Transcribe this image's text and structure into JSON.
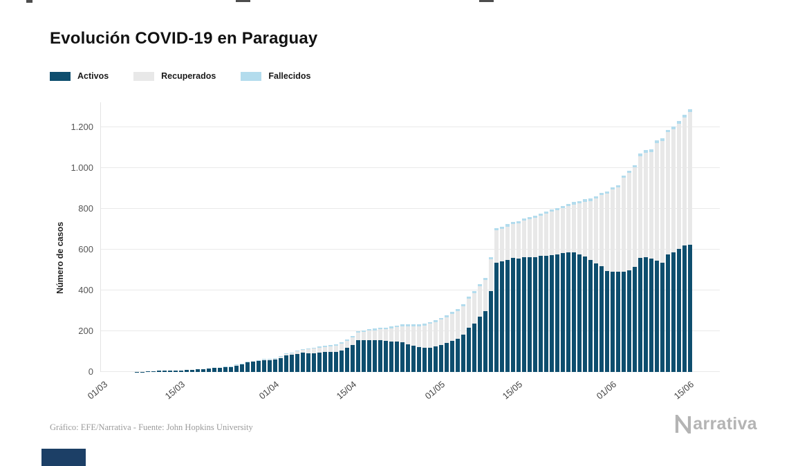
{
  "header": {
    "title": "Evolución COVID-19 en Paraguay"
  },
  "legend": {
    "items": [
      {
        "label": "Activos",
        "color": "#0e4e6e"
      },
      {
        "label": "Recuperados",
        "color": "#e8e8e8"
      },
      {
        "label": "Fallecidos",
        "color": "#b3dced"
      }
    ]
  },
  "footer": {
    "credit": "Gráfico: EFE/Narrativa - Fuente: John Hopkins University",
    "brand_name": "Narrativa",
    "brand_text": "arrativa"
  },
  "colors": {
    "background": "#ffffff",
    "gridline": "#e9e9e9",
    "banner": "#1c3f66",
    "brand_gray": "#b4b4b4"
  },
  "chart_data": {
    "type": "bar",
    "stacked": true,
    "title": "Evolución COVID-19 en Paraguay",
    "xlabel": "",
    "ylabel": "Número de casos",
    "ylim": [
      0,
      1300
    ],
    "grid": "horizontal",
    "legend_position": "top-left",
    "yticks": [
      0,
      200,
      400,
      600,
      800,
      1000,
      1200
    ],
    "ytick_labels": [
      "0",
      "200",
      "400",
      "600",
      "800",
      "1.000",
      "1.200"
    ],
    "xtick_labels": [
      "01/03",
      "15/03",
      "01/04",
      "15/04",
      "01/05",
      "15/05",
      "01/06",
      "15/06"
    ],
    "xtick_day_index": [
      0,
      14,
      31,
      45,
      61,
      75,
      92,
      106
    ],
    "dates": [
      "01/03",
      "02/03",
      "03/03",
      "04/03",
      "05/03",
      "06/03",
      "07/03",
      "08/03",
      "09/03",
      "10/03",
      "11/03",
      "12/03",
      "13/03",
      "14/03",
      "15/03",
      "16/03",
      "17/03",
      "18/03",
      "19/03",
      "20/03",
      "21/03",
      "22/03",
      "23/03",
      "24/03",
      "25/03",
      "26/03",
      "27/03",
      "28/03",
      "29/03",
      "30/03",
      "31/03",
      "01/04",
      "02/04",
      "03/04",
      "04/04",
      "05/04",
      "06/04",
      "07/04",
      "08/04",
      "09/04",
      "10/04",
      "11/04",
      "12/04",
      "13/04",
      "14/04",
      "15/04",
      "16/04",
      "17/04",
      "18/04",
      "19/04",
      "20/04",
      "21/04",
      "22/04",
      "23/04",
      "24/04",
      "25/04",
      "26/04",
      "27/04",
      "28/04",
      "29/04",
      "30/04",
      "01/05",
      "02/05",
      "03/05",
      "04/05",
      "05/05",
      "06/05",
      "07/05",
      "08/05",
      "09/05",
      "10/05",
      "11/05",
      "12/05",
      "13/05",
      "14/05",
      "15/05",
      "16/05",
      "17/05",
      "18/05",
      "19/05",
      "20/05",
      "21/05",
      "22/05",
      "23/05",
      "24/05",
      "25/05",
      "26/05",
      "27/05",
      "28/05",
      "29/05",
      "30/05",
      "31/05",
      "01/06",
      "02/06",
      "03/06",
      "04/06",
      "05/06",
      "06/06",
      "07/06",
      "08/06",
      "09/06",
      "10/06",
      "11/06",
      "12/06",
      "13/06",
      "14/06",
      "15/06"
    ],
    "series": [
      {
        "name": "Activos",
        "color": "#0e4e6e",
        "values": [
          0,
          0,
          0,
          0,
          0,
          0,
          1,
          1,
          3,
          5,
          6,
          6,
          7,
          7,
          8,
          9,
          11,
          13,
          15,
          17,
          21,
          20,
          24,
          24,
          32,
          36,
          47,
          50,
          53,
          58,
          59,
          62,
          69,
          82,
          84,
          89,
          95,
          93,
          93,
          96,
          97,
          98,
          97,
          106,
          120,
          133,
          155,
          156,
          157,
          156,
          157,
          152,
          150,
          148,
          145,
          137,
          129,
          121,
          118,
          120,
          124,
          133,
          141,
          154,
          164,
          183,
          216,
          238,
          271,
          299,
          396,
          536,
          541,
          549,
          558,
          557,
          564,
          564,
          564,
          569,
          570,
          574,
          576,
          582,
          586,
          585,
          577,
          567,
          549,
          533,
          519,
          494,
          491,
          491,
          491,
          497,
          514,
          560,
          563,
          556,
          545,
          535,
          575,
          588,
          605,
          620,
          625
        ]
      },
      {
        "name": "Recuperados",
        "color": "#e8e8e8",
        "values": [
          0,
          0,
          0,
          0,
          0,
          0,
          0,
          0,
          0,
          0,
          0,
          0,
          0,
          0,
          0,
          0,
          0,
          0,
          0,
          0,
          0,
          1,
          1,
          1,
          2,
          2,
          2,
          3,
          3,
          3,
          3,
          4,
          5,
          7,
          9,
          12,
          15,
          18,
          21,
          23,
          26,
          29,
          31,
          34,
          34,
          36,
          38,
          41,
          45,
          49,
          53,
          58,
          64,
          71,
          79,
          87,
          95,
          103,
          110,
          116,
          121,
          124,
          128,
          132,
          136,
          140,
          144,
          148,
          150,
          153,
          156,
          158,
          161,
          164,
          168,
          172,
          178,
          184,
          191,
          198,
          205,
          211,
          217,
          222,
          227,
          237,
          250,
          268,
          290,
          318,
          348,
          380,
          404,
          415,
          462,
          478,
          488,
          498,
          512,
          522,
          578,
          598,
          600,
          601,
          612,
          628,
          651
        ]
      },
      {
        "name": "Fallecidos",
        "color": "#b3dced",
        "values": [
          0,
          0,
          0,
          0,
          0,
          0,
          0,
          0,
          0,
          0,
          0,
          0,
          0,
          0,
          0,
          0,
          0,
          0,
          0,
          1,
          1,
          1,
          2,
          2,
          3,
          3,
          3,
          3,
          3,
          3,
          3,
          3,
          3,
          3,
          3,
          3,
          3,
          4,
          5,
          5,
          6,
          6,
          6,
          7,
          7,
          7,
          8,
          8,
          8,
          8,
          8,
          8,
          9,
          9,
          9,
          9,
          9,
          9,
          9,
          9,
          9,
          9,
          9,
          10,
          10,
          10,
          10,
          10,
          10,
          10,
          11,
          11,
          11,
          11,
          11,
          11,
          11,
          11,
          11,
          11,
          11,
          11,
          11,
          11,
          11,
          11,
          11,
          11,
          11,
          11,
          11,
          11,
          11,
          11,
          11,
          11,
          11,
          12,
          12,
          12,
          12,
          12,
          12,
          13,
          13,
          13,
          13
        ]
      }
    ]
  }
}
